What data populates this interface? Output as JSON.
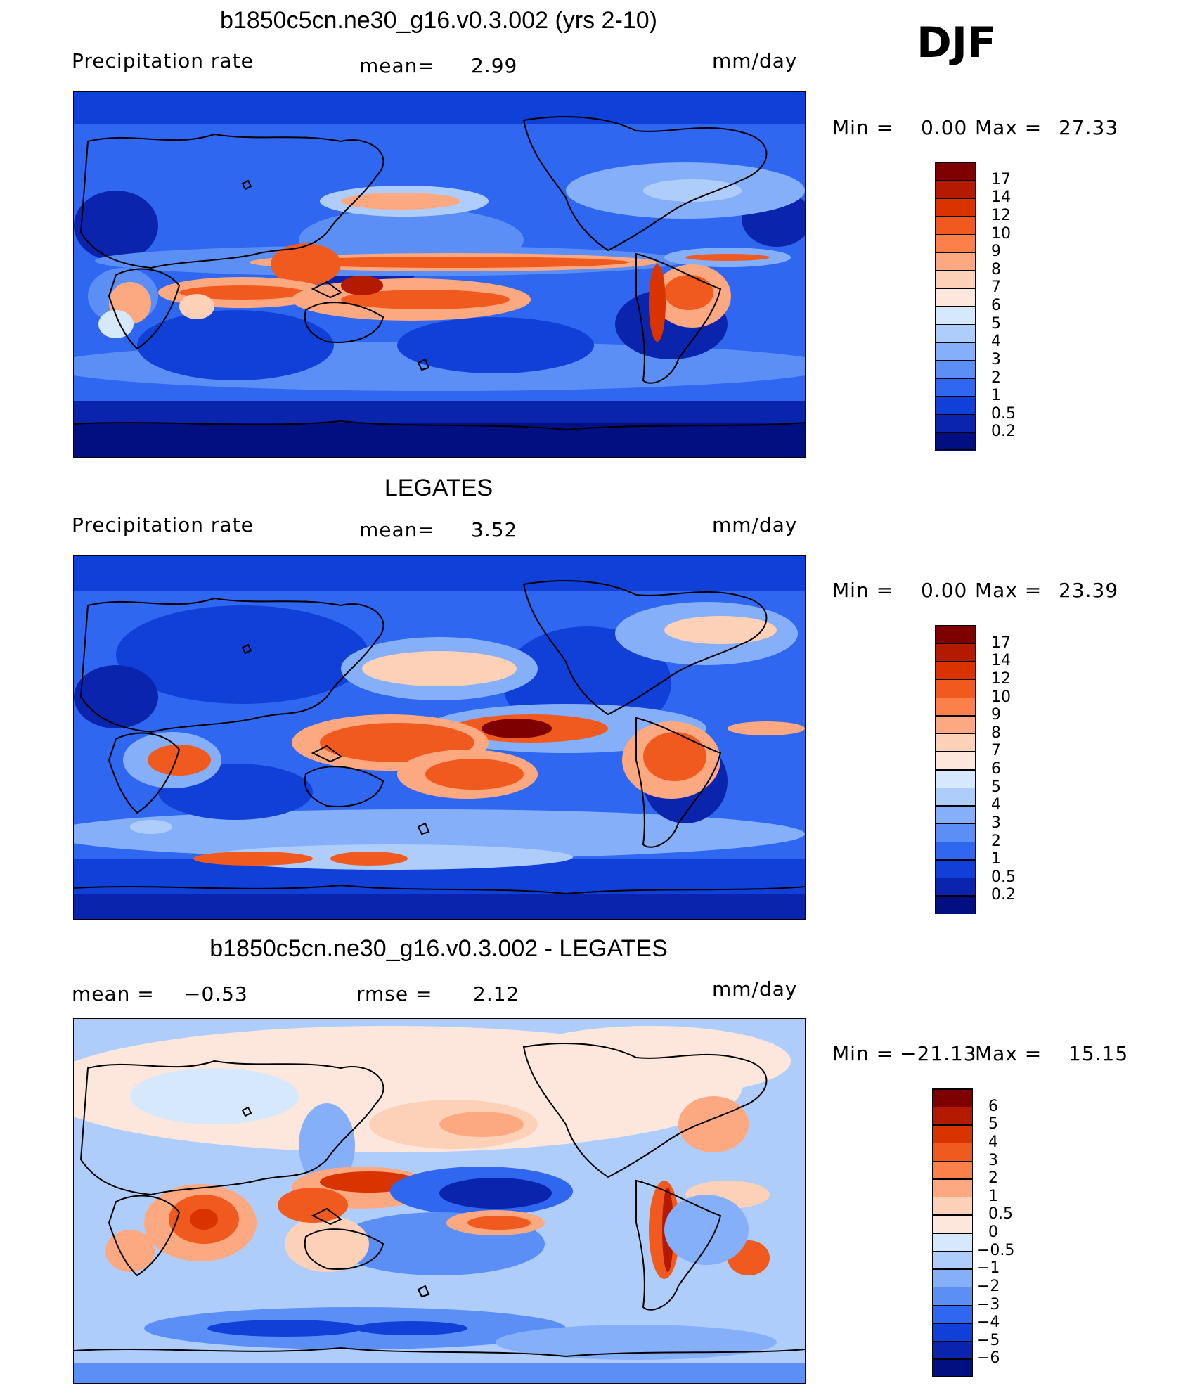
{
  "season": "DJF",
  "panels": [
    {
      "id": "model",
      "title": "b1850c5cn.ne30_g16.v0.3.002 (yrs 2-10)",
      "left_label": "Precipitation  rate",
      "mean_label": "mean=",
      "mean_value": "2.99",
      "units": "mm/day",
      "min_label": "Min  =",
      "min_value": "0.00",
      "max_label": "Max  =",
      "max_value": "27.33",
      "colorbar_ticks": [
        "17",
        "14",
        "12",
        "10",
        "9",
        "8",
        "7",
        "6",
        "5",
        "4",
        "3",
        "2",
        "1",
        "0.5",
        "0.2"
      ],
      "colorbar_colors": [
        "#7f0000",
        "#b31a00",
        "#d93300",
        "#f05a1f",
        "#fb8049",
        "#fca982",
        "#fdd0b8",
        "#fde7dc",
        "#d6e8fb",
        "#afcdfb",
        "#85aff9",
        "#5c8ff5",
        "#2f67f0",
        "#1040d8",
        "#0a24ad",
        "#020f80"
      ]
    },
    {
      "id": "obs",
      "title": "LEGATES",
      "left_label": "Precipitation  rate",
      "mean_label": "mean=",
      "mean_value": "3.52",
      "units": "mm/day",
      "min_label": "Min  =",
      "min_value": "0.00",
      "max_label": "Max  =",
      "max_value": "23.39",
      "colorbar_ticks": [
        "17",
        "14",
        "12",
        "10",
        "9",
        "8",
        "7",
        "6",
        "5",
        "4",
        "3",
        "2",
        "1",
        "0.5",
        "0.2"
      ],
      "colorbar_colors": [
        "#7f0000",
        "#b31a00",
        "#d93300",
        "#f05a1f",
        "#fb8049",
        "#fca982",
        "#fdd0b8",
        "#fde7dc",
        "#d6e8fb",
        "#afcdfb",
        "#85aff9",
        "#5c8ff5",
        "#2f67f0",
        "#1040d8",
        "#0a24ad",
        "#020f80"
      ]
    },
    {
      "id": "diff",
      "title": "b1850c5cn.ne30_g16.v0.3.002 - LEGATES",
      "left_label": "mean  =",
      "left_value": "−0.53",
      "rmse_label": "rmse  =",
      "rmse_value": "2.12",
      "units": "mm/day",
      "min_label": "Min  =",
      "min_value": "−21.13",
      "max_label": "Max  =",
      "max_value": "15.15",
      "colorbar_ticks": [
        "6",
        "5",
        "4",
        "3",
        "2",
        "1",
        "0.5",
        "0",
        "−0.5",
        "−1",
        "−2",
        "−3",
        "−4",
        "−5",
        "−6"
      ],
      "colorbar_colors": [
        "#7f0000",
        "#b31a00",
        "#d93300",
        "#f05a1f",
        "#fb8049",
        "#fca982",
        "#fdd0b8",
        "#fde7dc",
        "#d6e8fb",
        "#afcdfb",
        "#85aff9",
        "#5c8ff5",
        "#2f67f0",
        "#1040d8",
        "#0a24ad",
        "#020f80"
      ]
    }
  ]
}
